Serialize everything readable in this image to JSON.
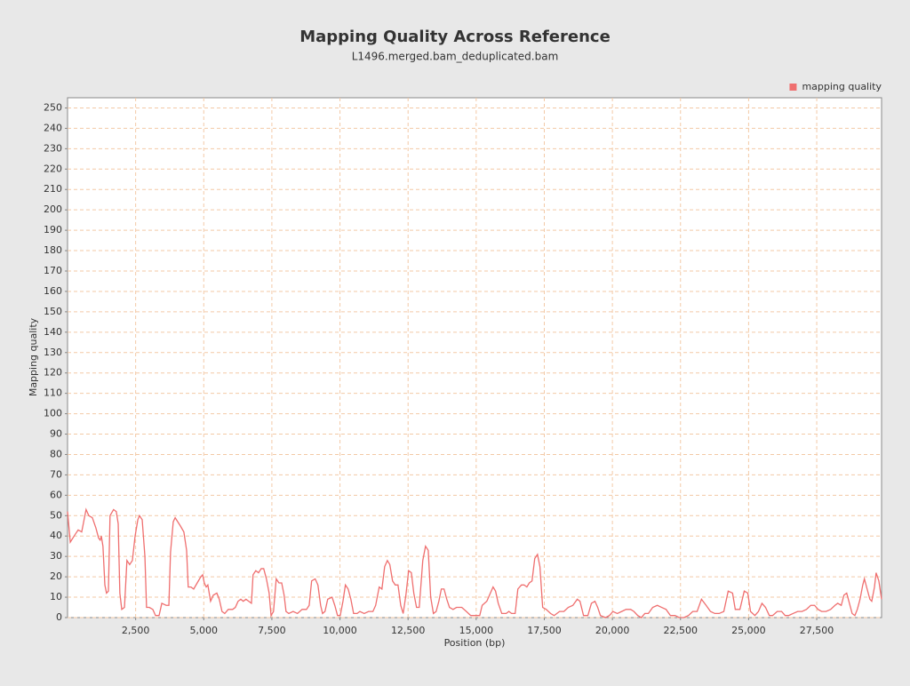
{
  "chart_data": {
    "type": "line",
    "title": "Mapping Quality Across Reference",
    "subtitle": "L1496.merged.bam_deduplicated.bam",
    "x_label": "Position (bp)",
    "y_label": "Mapping quality",
    "legend": "top-right",
    "grid": true,
    "xlim": [
      0,
      29880
    ],
    "ylim": [
      0,
      255
    ],
    "xticks": [
      {
        "value": 2500,
        "label": "2,500"
      },
      {
        "value": 5000,
        "label": "5,000"
      },
      {
        "value": 7500,
        "label": "7,500"
      },
      {
        "value": 10000,
        "label": "10,000"
      },
      {
        "value": 12500,
        "label": "12,500"
      },
      {
        "value": 15000,
        "label": "15,000"
      },
      {
        "value": 17500,
        "label": "17,500"
      },
      {
        "value": 20000,
        "label": "20,000"
      },
      {
        "value": 22500,
        "label": "22,500"
      },
      {
        "value": 25000,
        "label": "25,000"
      },
      {
        "value": 27500,
        "label": "27,500"
      }
    ],
    "yticks": [
      0,
      10,
      20,
      30,
      40,
      50,
      60,
      70,
      80,
      90,
      100,
      110,
      120,
      130,
      140,
      150,
      160,
      170,
      180,
      190,
      200,
      210,
      220,
      230,
      240,
      250
    ],
    "x": [
      0,
      100,
      290,
      390,
      520,
      680,
      780,
      910,
      1040,
      1140,
      1200,
      1240,
      1300,
      1370,
      1430,
      1500,
      1560,
      1690,
      1790,
      1860,
      1920,
      1990,
      2090,
      2180,
      2280,
      2380,
      2480,
      2580,
      2640,
      2740,
      2840,
      2900,
      3000,
      3130,
      3230,
      3360,
      3460,
      3620,
      3720,
      3780,
      3880,
      3950,
      4140,
      4270,
      4370,
      4430,
      4530,
      4630,
      4760,
      4890,
      4960,
      5020,
      5090,
      5150,
      5250,
      5350,
      5480,
      5570,
      5670,
      5770,
      5900,
      6060,
      6160,
      6260,
      6360,
      6450,
      6550,
      6650,
      6750,
      6810,
      6910,
      7010,
      7110,
      7200,
      7300,
      7400,
      7470,
      7560,
      7660,
      7760,
      7860,
      7950,
      8020,
      8120,
      8280,
      8440,
      8610,
      8770,
      8870,
      8960,
      9090,
      9190,
      9290,
      9360,
      9450,
      9550,
      9710,
      9810,
      9910,
      10010,
      10110,
      10200,
      10300,
      10400,
      10500,
      10630,
      10730,
      10890,
      11050,
      11210,
      11310,
      11440,
      11540,
      11640,
      11740,
      11830,
      11930,
      12030,
      12130,
      12230,
      12320,
      12420,
      12520,
      12620,
      12710,
      12810,
      12910,
      13040,
      13140,
      13240,
      13330,
      13430,
      13530,
      13630,
      13720,
      13820,
      13920,
      14020,
      14150,
      14280,
      14470,
      14640,
      14800,
      15000,
      15130,
      15220,
      15390,
      15520,
      15620,
      15710,
      15810,
      15940,
      16100,
      16200,
      16300,
      16430,
      16530,
      16660,
      16760,
      16860,
      16950,
      17050,
      17150,
      17250,
      17340,
      17440,
      17570,
      17730,
      17860,
      18060,
      18220,
      18380,
      18550,
      18710,
      18810,
      18940,
      19100,
      19230,
      19360,
      19460,
      19560,
      19750,
      19890,
      20020,
      20180,
      20340,
      20500,
      20670,
      20790,
      20930,
      21060,
      21190,
      21320,
      21480,
      21650,
      21810,
      21970,
      22130,
      22300,
      22460,
      22620,
      22790,
      22950,
      23110,
      23270,
      23440,
      23600,
      23760,
      23920,
      24090,
      24250,
      24410,
      24510,
      24680,
      24840,
      24970,
      25070,
      25230,
      25360,
      25490,
      25620,
      25760,
      25880,
      26050,
      26210,
      26340,
      26470,
      26630,
      26800,
      26960,
      27120,
      27280,
      27420,
      27550,
      27680,
      27840,
      28010,
      28170,
      28270,
      28400,
      28500,
      28600,
      28700,
      28800,
      28900,
      28990,
      29090,
      29190,
      29250,
      29350,
      29450,
      29520,
      29620,
      29680,
      29780,
      29880
    ],
    "series": [
      {
        "name": "mapping quality",
        "color": "#ef6f6f",
        "values": [
          52,
          37,
          41,
          43,
          42,
          53,
          50,
          49,
          44,
          39,
          38,
          40,
          35,
          16,
          12,
          13,
          50,
          53,
          52,
          46,
          12,
          4,
          5,
          28,
          26,
          28,
          40,
          48,
          50,
          48,
          30,
          5,
          5,
          4,
          1,
          1,
          7,
          6,
          6,
          32,
          47,
          49,
          45,
          42,
          33,
          15,
          15,
          14,
          17,
          20,
          21,
          17,
          15,
          16,
          8,
          11,
          12,
          9,
          3,
          2,
          4,
          4,
          5,
          8,
          9,
          8,
          9,
          8,
          7,
          21,
          23,
          22,
          24,
          24,
          19,
          12,
          1,
          3,
          19,
          17,
          17,
          11,
          3,
          2,
          3,
          2,
          4,
          4,
          6,
          18,
          19,
          16,
          6,
          2,
          3,
          9,
          10,
          6,
          1,
          1,
          8,
          16,
          14,
          9,
          2,
          2,
          3,
          2,
          3,
          3,
          6,
          15,
          14,
          25,
          28,
          26,
          18,
          16,
          16,
          6,
          2,
          11,
          23,
          22,
          12,
          5,
          5,
          28,
          35,
          33,
          10,
          2,
          3,
          8,
          14,
          14,
          9,
          5,
          4,
          5,
          5,
          3,
          1,
          1,
          1,
          6,
          8,
          12,
          15,
          13,
          7,
          2,
          2,
          3,
          2,
          2,
          14,
          16,
          16,
          15,
          17,
          18,
          29,
          31,
          25,
          5,
          4,
          2,
          1,
          3,
          3,
          5,
          6,
          9,
          8,
          1,
          1,
          7,
          8,
          5,
          1,
          0,
          1,
          3,
          2,
          3,
          4,
          4,
          3,
          1,
          0,
          2,
          2,
          5,
          6,
          5,
          4,
          1,
          1,
          0,
          0,
          1,
          3,
          3,
          9,
          6,
          3,
          2,
          2,
          3,
          13,
          12,
          4,
          4,
          13,
          12,
          3,
          1,
          3,
          7,
          5,
          1,
          1,
          3,
          3,
          1,
          1,
          2,
          3,
          3,
          4,
          6,
          6,
          4,
          3,
          3,
          4,
          6,
          7,
          6,
          11,
          12,
          7,
          2,
          1,
          4,
          9,
          16,
          19,
          14,
          9,
          8,
          15,
          22,
          18,
          9
        ]
      }
    ]
  }
}
